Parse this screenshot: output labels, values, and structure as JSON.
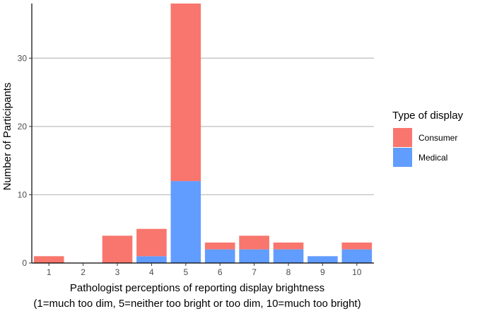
{
  "chart_data": {
    "type": "bar",
    "stacked": true,
    "categories": [
      "1",
      "2",
      "3",
      "4",
      "5",
      "6",
      "7",
      "8",
      "9",
      "10"
    ],
    "series": [
      {
        "name": "Consumer",
        "color": "#F8766D",
        "values": [
          1,
          0,
          4,
          4,
          26,
          1,
          2,
          1,
          0,
          1
        ]
      },
      {
        "name": "Medical",
        "color": "#619CFF",
        "values": [
          0,
          0,
          0,
          1,
          12,
          2,
          2,
          2,
          1,
          2
        ]
      }
    ],
    "xlabel_line1": "Pathologist perceptions of reporting display brightness",
    "xlabel_line2": "(1=much too dim, 5=neither too bright or too dim, 10=much too bright)",
    "ylabel": "Number of Participants",
    "yticks": [
      0,
      10,
      20,
      30
    ],
    "ylim": [
      0,
      38
    ],
    "grid": true,
    "legend": {
      "title": "Type of display",
      "position": "right"
    }
  }
}
